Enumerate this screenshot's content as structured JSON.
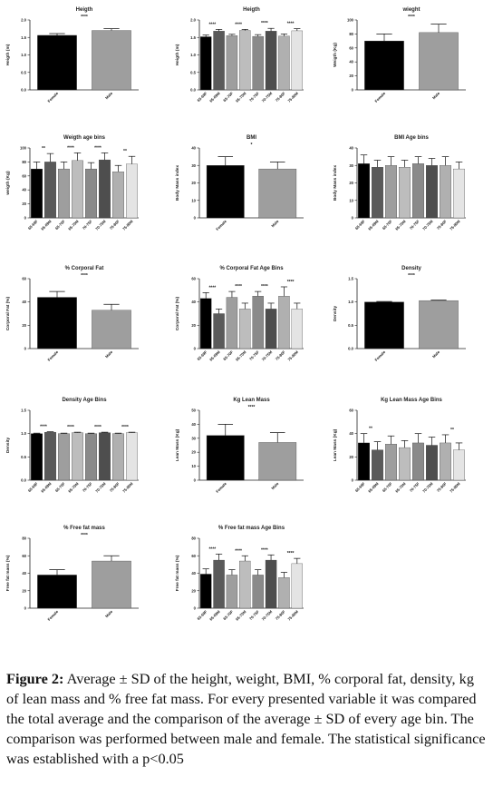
{
  "caption": {
    "label": "Figure 2:",
    "text": "Average ± SD of the height, weight, BMI, % corporal fat, density, kg of lean mass and % free fat mass.  For every presented variable it was compared the total average and the comparison of the average ± SD of every age bin. The comparison was performed between male and female. The statistical significance was established with a p<0.05"
  },
  "chart_data": [
    {
      "type": "bar",
      "title": "Heigth",
      "ylabel": "Heigth (m)",
      "ylim": [
        0,
        2.0
      ],
      "yticks": [
        "0.0",
        "0.5",
        "1.0",
        "1.5",
        "2.0"
      ],
      "ytick_values": [
        0,
        0.5,
        1.0,
        1.5,
        2.0
      ],
      "categories": [
        "Female",
        "Male"
      ],
      "values": [
        1.56,
        1.7
      ],
      "errors": [
        0.05,
        0.05
      ],
      "colors": [
        "#000000",
        "#9e9e9e"
      ],
      "significance": [
        {
          "from": 0,
          "to": 1,
          "label": "****"
        }
      ]
    },
    {
      "type": "bar",
      "title": "Heigth",
      "ylabel": "Heigth (m)",
      "ylim": [
        0,
        2.0
      ],
      "yticks": [
        "0.0",
        "0.5",
        "1.0",
        "1.5",
        "2.0"
      ],
      "ytick_values": [
        0,
        0.5,
        1.0,
        1.5,
        2.0
      ],
      "categories": [
        "65-69F",
        "65-69M",
        "65-70F",
        "65-70M",
        "70-75F",
        "70-75M",
        "75-80F",
        "75-80M"
      ],
      "values": [
        1.52,
        1.68,
        1.55,
        1.7,
        1.53,
        1.68,
        1.54,
        1.69
      ],
      "errors": [
        0.05,
        0.05,
        0.04,
        0.03,
        0.05,
        0.08,
        0.06,
        0.06
      ],
      "colors": [
        "#000000",
        "#5a5a5a",
        "#9e9e9e",
        "#bdbdbd",
        "#8a8a8a",
        "#4e4e4e",
        "#b0b0b0",
        "#e4e4e4"
      ],
      "significance": [
        {
          "from": 0,
          "to": 1,
          "label": "****"
        },
        {
          "from": 2,
          "to": 3,
          "label": "****"
        },
        {
          "from": 4,
          "to": 5,
          "label": "****"
        },
        {
          "from": 6,
          "to": 7,
          "label": "****"
        }
      ]
    },
    {
      "type": "bar",
      "title": "wieght",
      "ylabel": "Weigth (Kg)",
      "ylim": [
        0,
        100
      ],
      "yticks": [
        "0",
        "20",
        "40",
        "60",
        "80",
        "100"
      ],
      "ytick_values": [
        0,
        20,
        40,
        60,
        80,
        100
      ],
      "categories": [
        "Female",
        "Male"
      ],
      "values": [
        70,
        82
      ],
      "errors": [
        10,
        12
      ],
      "colors": [
        "#000000",
        "#9e9e9e"
      ],
      "significance": [
        {
          "from": 0,
          "to": 1,
          "label": "****"
        }
      ]
    },
    {
      "type": "bar",
      "title": "Weigth age bins",
      "ylabel": "weigth (Kg)",
      "ylim": [
        0,
        100
      ],
      "yticks": [
        "0",
        "20",
        "40",
        "60",
        "80",
        "100"
      ],
      "ytick_values": [
        0,
        20,
        40,
        60,
        80,
        100
      ],
      "categories": [
        "65-69F",
        "65-69M",
        "65-70F",
        "65-70M",
        "70-75F",
        "70-75M",
        "75-80F",
        "75-80M"
      ],
      "values": [
        70,
        80,
        70,
        82,
        70,
        83,
        66,
        77
      ],
      "errors": [
        10,
        12,
        10,
        11,
        9,
        10,
        9,
        11
      ],
      "colors": [
        "#000000",
        "#5a5a5a",
        "#9e9e9e",
        "#bdbdbd",
        "#8a8a8a",
        "#4e4e4e",
        "#b0b0b0",
        "#e4e4e4"
      ],
      "significance": [
        {
          "from": 0,
          "to": 1,
          "label": "**"
        },
        {
          "from": 2,
          "to": 3,
          "label": "****"
        },
        {
          "from": 4,
          "to": 5,
          "label": "****"
        },
        {
          "from": 6,
          "to": 7,
          "label": "**"
        }
      ]
    },
    {
      "type": "bar",
      "title": "BMI",
      "ylabel": "Body Mass index",
      "ylim": [
        0,
        40
      ],
      "yticks": [
        "0",
        "10",
        "20",
        "30",
        "40"
      ],
      "ytick_values": [
        0,
        10,
        20,
        30,
        40
      ],
      "categories": [
        "Female",
        "Male"
      ],
      "values": [
        30,
        28
      ],
      "errors": [
        5,
        4
      ],
      "colors": [
        "#000000",
        "#9e9e9e"
      ],
      "significance": [
        {
          "from": 0,
          "to": 1,
          "label": "*"
        }
      ]
    },
    {
      "type": "bar",
      "title": "BMI Age bins",
      "ylabel": "Body Mass index",
      "ylim": [
        0,
        40
      ],
      "yticks": [
        "0",
        "10",
        "20",
        "30",
        "40"
      ],
      "ytick_values": [
        0,
        10,
        20,
        30,
        40
      ],
      "categories": [
        "65-69F",
        "65-69M",
        "65-70F",
        "65-70M",
        "70-75F",
        "70-75M",
        "75-80F",
        "75-80M"
      ],
      "values": [
        31,
        29,
        30,
        29,
        31,
        30,
        30,
        28
      ],
      "errors": [
        5,
        4,
        5,
        4,
        4,
        4,
        5,
        4
      ],
      "colors": [
        "#000000",
        "#5a5a5a",
        "#9e9e9e",
        "#bdbdbd",
        "#8a8a8a",
        "#4e4e4e",
        "#b0b0b0",
        "#e4e4e4"
      ],
      "significance": []
    },
    {
      "type": "bar",
      "title": "% Corporal Fat",
      "ylabel": "Corporal Fat (%)",
      "ylim": [
        0,
        60
      ],
      "yticks": [
        "0",
        "20",
        "40",
        "60"
      ],
      "ytick_values": [
        0,
        20,
        40,
        60
      ],
      "categories": [
        "Female",
        "Male"
      ],
      "values": [
        44,
        33
      ],
      "errors": [
        5,
        5
      ],
      "colors": [
        "#000000",
        "#9e9e9e"
      ],
      "significance": [
        {
          "from": 0,
          "to": 1,
          "label": "****"
        }
      ]
    },
    {
      "type": "bar",
      "title": "% Corporal Fat Age Bins",
      "ylabel": "Corporal Fat (%)",
      "ylim": [
        0,
        60
      ],
      "yticks": [
        "0",
        "20",
        "40",
        "60"
      ],
      "ytick_values": [
        0,
        20,
        40,
        60
      ],
      "categories": [
        "65-69F",
        "65-69M",
        "65-70F",
        "65-70M",
        "70-75F",
        "70-75M",
        "75-80F",
        "75-80M"
      ],
      "values": [
        43,
        30,
        44,
        34,
        45,
        34,
        45,
        34
      ],
      "errors": [
        5,
        4,
        5,
        5,
        4,
        5,
        8,
        5
      ],
      "colors": [
        "#000000",
        "#5a5a5a",
        "#9e9e9e",
        "#bdbdbd",
        "#8a8a8a",
        "#4e4e4e",
        "#b0b0b0",
        "#e4e4e4"
      ],
      "significance": [
        {
          "from": 0,
          "to": 1,
          "label": "****"
        },
        {
          "from": 2,
          "to": 3,
          "label": "****"
        },
        {
          "from": 4,
          "to": 5,
          "label": "****"
        },
        {
          "from": 6,
          "to": 7,
          "label": "****"
        }
      ]
    },
    {
      "type": "bar",
      "title": "Density",
      "ylabel": "Density",
      "ylim": [
        0,
        1.5
      ],
      "yticks": [
        "0.0",
        "0.5",
        "1.0",
        "1.5"
      ],
      "ytick_values": [
        0,
        0.5,
        1.0,
        1.5
      ],
      "categories": [
        "Female",
        "Male"
      ],
      "values": [
        1.0,
        1.03
      ],
      "errors": [
        0.01,
        0.01
      ],
      "colors": [
        "#000000",
        "#9e9e9e"
      ],
      "significance": [
        {
          "from": 0,
          "to": 1,
          "label": "****"
        }
      ]
    },
    {
      "type": "bar",
      "title": "Density Age Bins",
      "ylabel": "Density",
      "ylim": [
        0,
        1.5
      ],
      "yticks": [
        "0.0",
        "0.5",
        "1.0",
        "1.5"
      ],
      "ytick_values": [
        0,
        0.5,
        1.0,
        1.5
      ],
      "categories": [
        "65-69F",
        "65-69M",
        "65-70F",
        "65-70M",
        "70-75F",
        "70-75M",
        "75-80F",
        "75-80M"
      ],
      "values": [
        1.0,
        1.03,
        1.0,
        1.02,
        1.0,
        1.02,
        1.0,
        1.02
      ],
      "errors": [
        0.01,
        0.01,
        0.01,
        0.01,
        0.01,
        0.01,
        0.01,
        0.01
      ],
      "colors": [
        "#000000",
        "#5a5a5a",
        "#9e9e9e",
        "#bdbdbd",
        "#8a8a8a",
        "#4e4e4e",
        "#b0b0b0",
        "#e4e4e4"
      ],
      "significance": [
        {
          "from": 0,
          "to": 1,
          "label": "****"
        },
        {
          "from": 2,
          "to": 3,
          "label": "****"
        },
        {
          "from": 4,
          "to": 5,
          "label": "****"
        },
        {
          "from": 6,
          "to": 7,
          "label": "****"
        }
      ]
    },
    {
      "type": "bar",
      "title": "Kg Lean Mass",
      "ylabel": "Lean Mass (Kg)",
      "ylim": [
        0,
        50
      ],
      "yticks": [
        "0",
        "10",
        "20",
        "30",
        "40",
        "50"
      ],
      "ytick_values": [
        0,
        10,
        20,
        30,
        40,
        50
      ],
      "categories": [
        "Female",
        "Male"
      ],
      "values": [
        32,
        27
      ],
      "errors": [
        8,
        7
      ],
      "colors": [
        "#000000",
        "#9e9e9e"
      ],
      "significance": [
        {
          "from": 0,
          "to": 1,
          "label": "****"
        }
      ]
    },
    {
      "type": "bar",
      "title": "Kg Lean Mass Age Bins",
      "ylabel": "Lean Mass (Kg)",
      "ylim": [
        0,
        60
      ],
      "yticks": [
        "0",
        "20",
        "40",
        "60"
      ],
      "ytick_values": [
        0,
        20,
        40,
        60
      ],
      "categories": [
        "65-69F",
        "65-69M",
        "65-70F",
        "65-70M",
        "70-75F",
        "70-75M",
        "75-80F",
        "75-80M"
      ],
      "values": [
        32,
        26,
        31,
        28,
        32,
        30,
        32,
        26
      ],
      "errors": [
        8,
        7,
        7,
        6,
        8,
        7,
        7,
        6
      ],
      "colors": [
        "#000000",
        "#5a5a5a",
        "#9e9e9e",
        "#bdbdbd",
        "#8a8a8a",
        "#4e4e4e",
        "#b0b0b0",
        "#e4e4e4"
      ],
      "significance": [
        {
          "from": 0,
          "to": 1,
          "label": "**"
        },
        {
          "from": 6,
          "to": 7,
          "label": "**"
        }
      ]
    },
    {
      "type": "bar",
      "title": "% Free fat mass",
      "ylabel": "Free fat mass (%)",
      "ylim": [
        0,
        80
      ],
      "yticks": [
        "0",
        "20",
        "40",
        "60",
        "80"
      ],
      "ytick_values": [
        0,
        20,
        40,
        60,
        80
      ],
      "categories": [
        "Female",
        "Male"
      ],
      "values": [
        38,
        54
      ],
      "errors": [
        6,
        6
      ],
      "colors": [
        "#000000",
        "#9e9e9e"
      ],
      "significance": [
        {
          "from": 0,
          "to": 1,
          "label": "****"
        }
      ]
    },
    {
      "type": "bar",
      "title": "% Free fat mass Age Bins",
      "ylabel": "Free fat mass (%)",
      "ylim": [
        0,
        80
      ],
      "yticks": [
        "0",
        "20",
        "40",
        "60",
        "80"
      ],
      "ytick_values": [
        0,
        20,
        40,
        60,
        80
      ],
      "categories": [
        "65-69F",
        "65-69M",
        "65-70F",
        "65-70M",
        "70-75F",
        "70-75M",
        "75-80F",
        "75-80M"
      ],
      "values": [
        39,
        55,
        38,
        54,
        38,
        55,
        35,
        51
      ],
      "errors": [
        6,
        7,
        6,
        6,
        6,
        6,
        6,
        6
      ],
      "colors": [
        "#000000",
        "#5a5a5a",
        "#9e9e9e",
        "#bdbdbd",
        "#8a8a8a",
        "#4e4e4e",
        "#b0b0b0",
        "#e4e4e4"
      ],
      "significance": [
        {
          "from": 0,
          "to": 1,
          "label": "****"
        },
        {
          "from": 2,
          "to": 3,
          "label": "****"
        },
        {
          "from": 4,
          "to": 5,
          "label": "****"
        },
        {
          "from": 6,
          "to": 7,
          "label": "****"
        }
      ]
    }
  ]
}
